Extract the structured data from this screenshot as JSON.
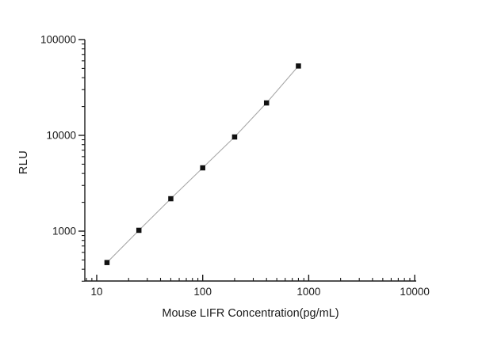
{
  "figure": {
    "background": "#ffffff"
  },
  "chart_data": {
    "type": "scatter",
    "title": "",
    "xlabel": "Mouse LIFR Concentration(pg/mL)",
    "ylabel": "RLU",
    "x_scale": "log",
    "y_scale": "log",
    "x": [
      12.5,
      25,
      50,
      100,
      200,
      400,
      800
    ],
    "y": [
      470,
      1020,
      2180,
      4580,
      9620,
      21800,
      53000
    ],
    "series": [
      {
        "name": "standard-curve",
        "marker": "filled-square",
        "connected": true
      }
    ],
    "x_ticks": [
      10,
      100,
      1000,
      10000
    ],
    "x_tick_labels": [
      "10",
      "100",
      "1000",
      "10000"
    ],
    "y_ticks": [
      1000,
      10000,
      100000
    ],
    "y_tick_labels": [
      "1000",
      "10000",
      "100000"
    ],
    "xlim": [
      7.7,
      10300
    ],
    "ylim": [
      300,
      100000
    ],
    "grid": false,
    "legend": false,
    "colors": {
      "axis": "#1a1a1a",
      "tick_text": "#1a1a1a",
      "marker": "#111111",
      "line": "#a8a8a8"
    }
  }
}
